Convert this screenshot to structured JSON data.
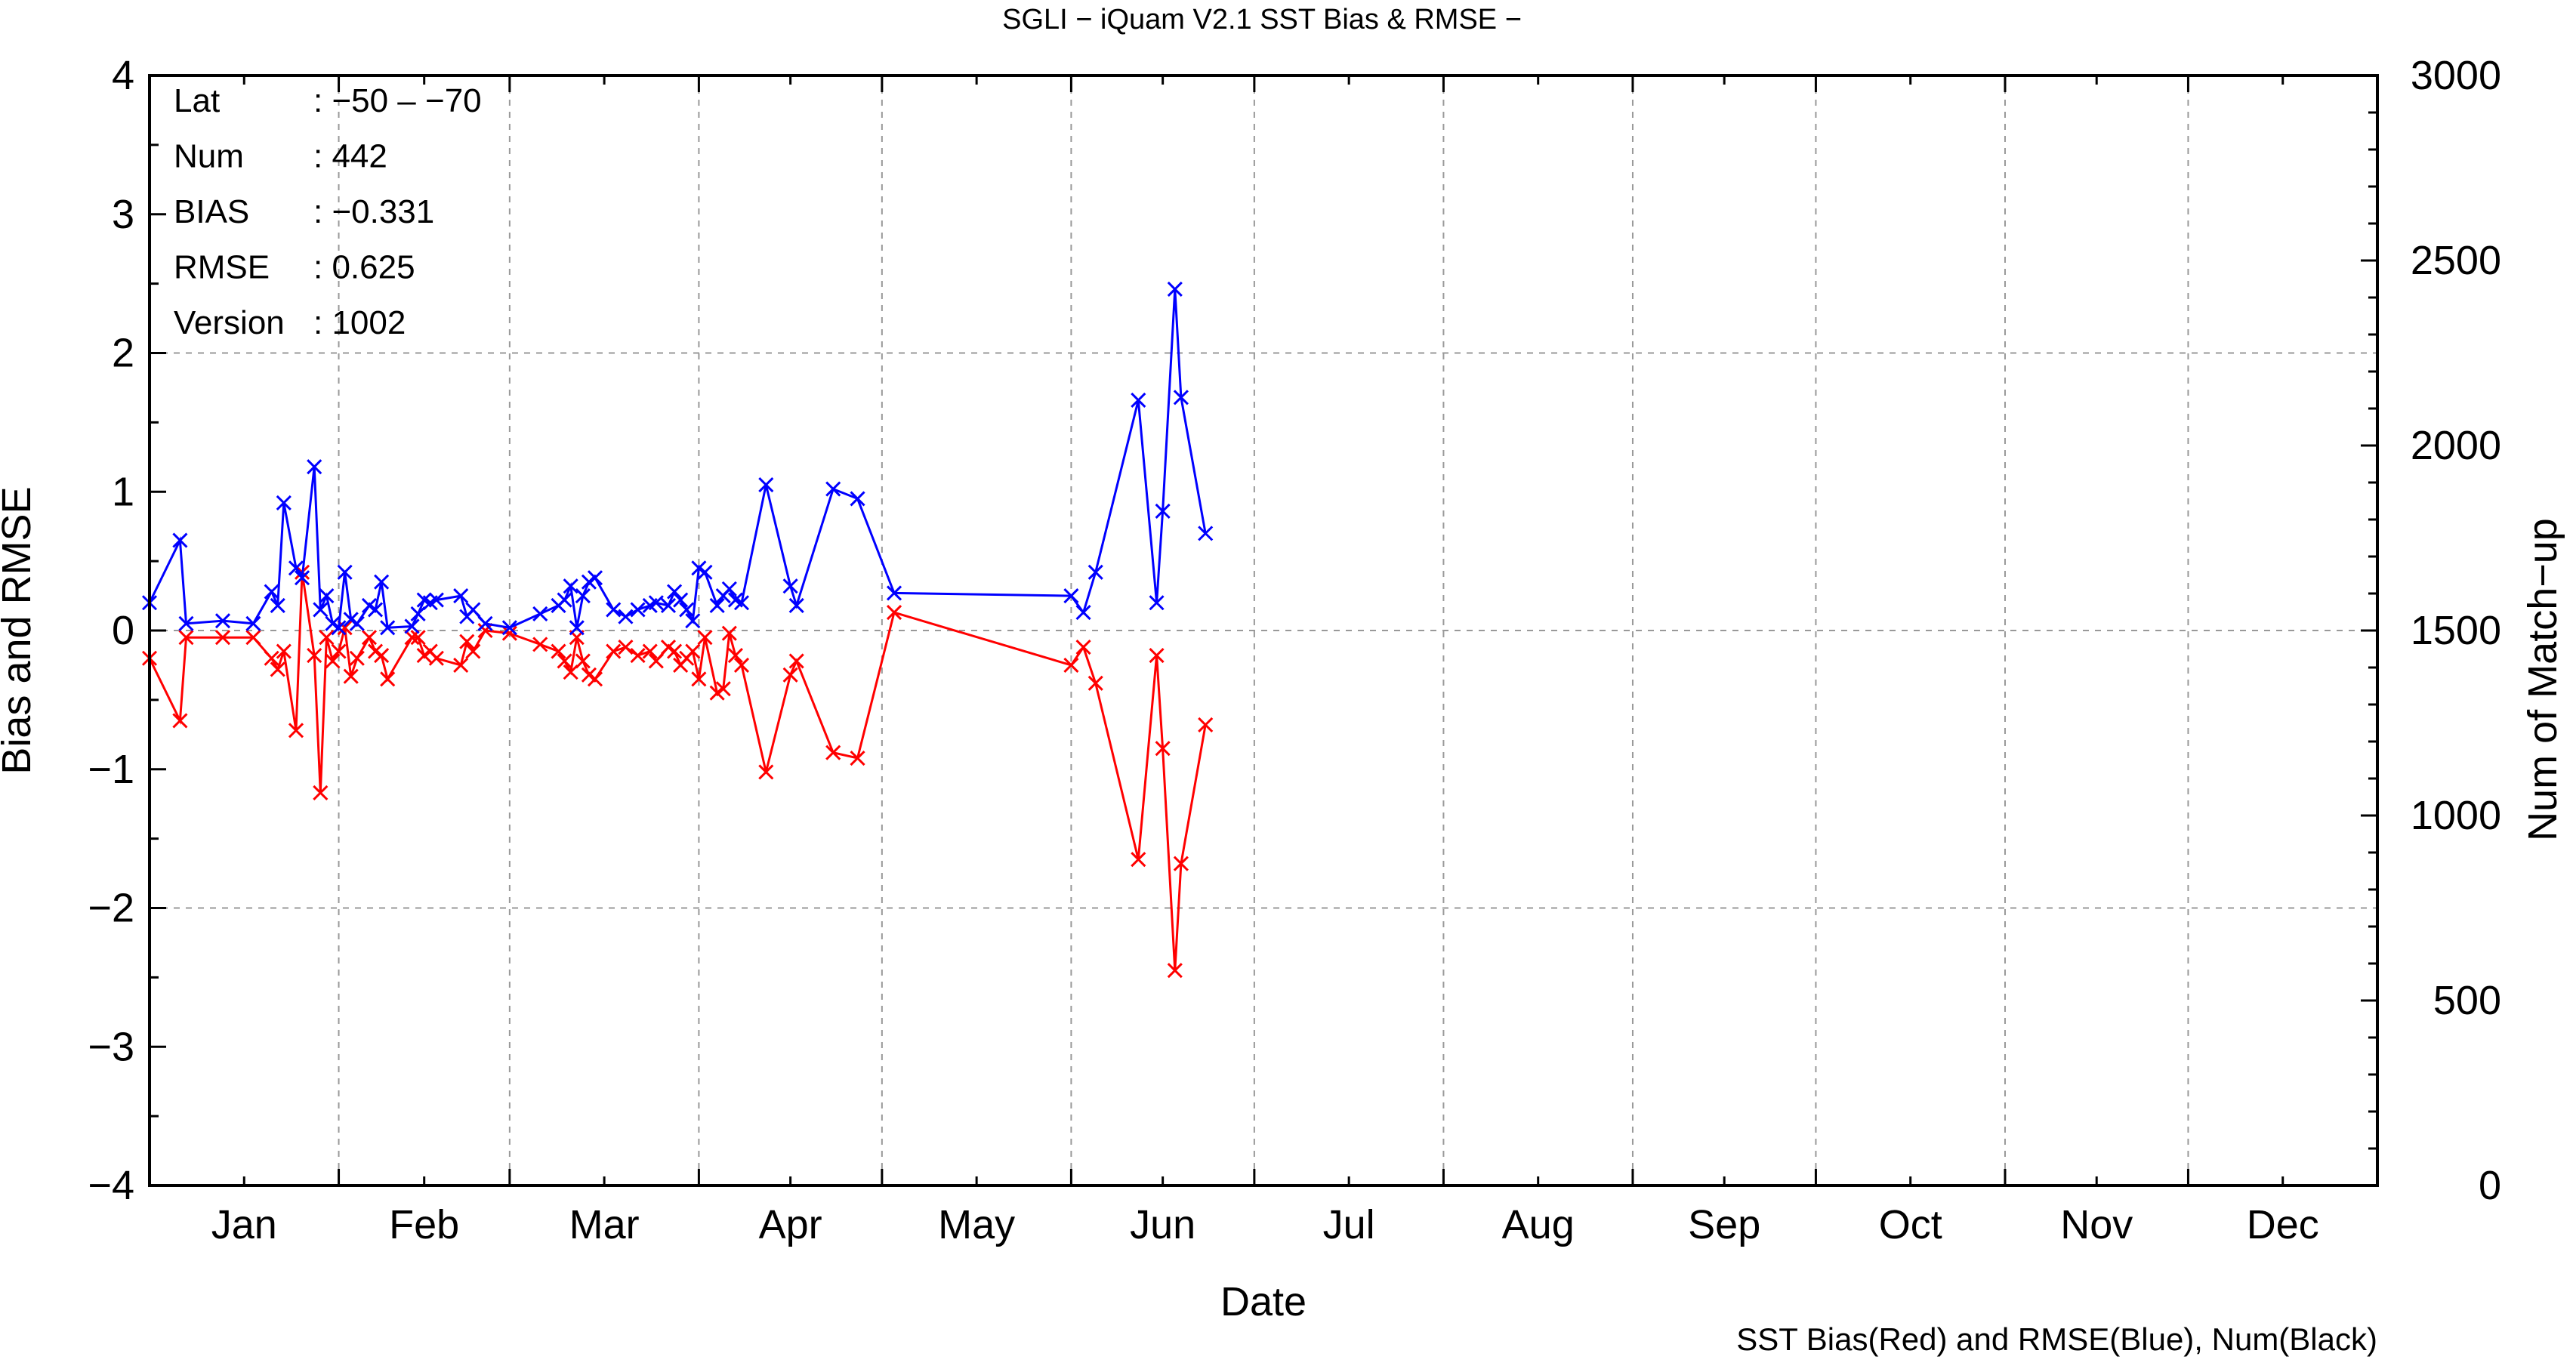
{
  "chart_data": {
    "type": "line",
    "title": "SGLI − iQuam V2.1 SST Bias & RMSE  −",
    "xlabel": "Date",
    "ylabel": "Bias and RMSE",
    "y2label": "Num of Match−up",
    "ylim": [
      -4,
      4
    ],
    "y2lim": [
      0,
      3000
    ],
    "xlim": [
      "2019-01-01",
      "2019-12-31"
    ],
    "x_month_labels": [
      "Jan",
      "Feb",
      "Mar",
      "Apr",
      "May",
      "Jun",
      "Jul",
      "Aug",
      "Sep",
      "Oct",
      "Nov",
      "Dec"
    ],
    "y_ticks": [
      "−4",
      "−3",
      "−2",
      "−1",
      "0",
      "1",
      "2",
      "3",
      "4"
    ],
    "y2_ticks": [
      "0",
      "500",
      "1000",
      "1500",
      "2000",
      "2500",
      "3000"
    ],
    "grid": true,
    "note": "SST Bias(Red) and RMSE(Blue), Num(Black)",
    "info": [
      {
        "label": "Lat",
        "value": ": −50 – −70"
      },
      {
        "label": "Num",
        "value": ": 442"
      },
      {
        "label": "BIAS",
        "value": ": −0.331"
      },
      {
        "label": "RMSE",
        "value": ": 0.625"
      },
      {
        "label": "Version",
        "value": ": 1002"
      }
    ],
    "colors": {
      "bias": "#ff0000",
      "rmse": "#0000ff",
      "grid": "#999999",
      "axis": "#000000"
    },
    "series": [
      {
        "key": "bias",
        "x": [
          "2019-01-01",
          "2019-01-06",
          "2019-01-07",
          "2019-01-13",
          "2019-01-18",
          "2019-01-21",
          "2019-01-22",
          "2019-01-23",
          "2019-01-25",
          "2019-01-26",
          "2019-01-28",
          "2019-01-29",
          "2019-01-30",
          "2019-01-31",
          "2019-02-01",
          "2019-02-02",
          "2019-02-03",
          "2019-02-04",
          "2019-02-06",
          "2019-02-07",
          "2019-02-08",
          "2019-02-09",
          "2019-02-13",
          "2019-02-14",
          "2019-02-15",
          "2019-02-16",
          "2019-02-17",
          "2019-02-21",
          "2019-02-22",
          "2019-02-23",
          "2019-02-25",
          "2019-03-01",
          "2019-03-06",
          "2019-03-09",
          "2019-03-10",
          "2019-03-11",
          "2019-03-12",
          "2019-03-13",
          "2019-03-14",
          "2019-03-15",
          "2019-03-18",
          "2019-03-20",
          "2019-03-22",
          "2019-03-24",
          "2019-03-25",
          "2019-03-27",
          "2019-03-28",
          "2019-03-29",
          "2019-03-30",
          "2019-03-31",
          "2019-04-01",
          "2019-04-02",
          "2019-04-04",
          "2019-04-05",
          "2019-04-06",
          "2019-04-07",
          "2019-04-08",
          "2019-04-12",
          "2019-04-16",
          "2019-04-17",
          "2019-04-23",
          "2019-04-27",
          "2019-05-03",
          "2019-06-01",
          "2019-06-03",
          "2019-06-05",
          "2019-06-12",
          "2019-06-15",
          "2019-06-16",
          "2019-06-18",
          "2019-06-19",
          "2019-06-23"
        ],
        "values": [
          -0.2,
          -0.65,
          -0.05,
          -0.05,
          -0.05,
          -0.2,
          -0.28,
          -0.15,
          -0.72,
          0.42,
          -0.18,
          -1.17,
          -0.05,
          -0.22,
          -0.15,
          0.02,
          -0.33,
          -0.2,
          -0.05,
          -0.15,
          -0.18,
          -0.35,
          -0.05,
          -0.05,
          -0.18,
          -0.15,
          -0.2,
          -0.25,
          -0.08,
          -0.15,
          0.0,
          -0.02,
          -0.1,
          -0.15,
          -0.22,
          -0.3,
          -0.05,
          -0.22,
          -0.32,
          -0.35,
          -0.15,
          -0.12,
          -0.18,
          -0.15,
          -0.22,
          -0.12,
          -0.15,
          -0.25,
          -0.2,
          -0.15,
          -0.35,
          -0.05,
          -0.45,
          -0.42,
          -0.02,
          -0.18,
          -0.25,
          -1.02,
          -0.32,
          -0.22,
          -0.88,
          -0.92,
          0.13,
          -0.25,
          -0.12,
          -0.38,
          -1.65,
          -0.18,
          -0.85,
          -2.45,
          -1.68,
          -0.68
        ]
      },
      {
        "key": "rmse",
        "x": [
          "2019-01-01",
          "2019-01-06",
          "2019-01-07",
          "2019-01-13",
          "2019-01-18",
          "2019-01-21",
          "2019-01-22",
          "2019-01-23",
          "2019-01-25",
          "2019-01-26",
          "2019-01-28",
          "2019-01-29",
          "2019-01-30",
          "2019-01-31",
          "2019-02-01",
          "2019-02-02",
          "2019-02-03",
          "2019-02-04",
          "2019-02-06",
          "2019-02-07",
          "2019-02-08",
          "2019-02-09",
          "2019-02-13",
          "2019-02-14",
          "2019-02-15",
          "2019-02-16",
          "2019-02-17",
          "2019-02-21",
          "2019-02-22",
          "2019-02-23",
          "2019-02-25",
          "2019-03-01",
          "2019-03-06",
          "2019-03-09",
          "2019-03-10",
          "2019-03-11",
          "2019-03-12",
          "2019-03-13",
          "2019-03-14",
          "2019-03-15",
          "2019-03-18",
          "2019-03-20",
          "2019-03-22",
          "2019-03-24",
          "2019-03-25",
          "2019-03-27",
          "2019-03-28",
          "2019-03-29",
          "2019-03-30",
          "2019-03-31",
          "2019-04-01",
          "2019-04-02",
          "2019-04-04",
          "2019-04-05",
          "2019-04-06",
          "2019-04-07",
          "2019-04-08",
          "2019-04-12",
          "2019-04-16",
          "2019-04-17",
          "2019-04-23",
          "2019-04-27",
          "2019-05-03",
          "2019-06-01",
          "2019-06-03",
          "2019-06-05",
          "2019-06-12",
          "2019-06-15",
          "2019-06-16",
          "2019-06-18",
          "2019-06-19",
          "2019-06-23"
        ],
        "values": [
          0.2,
          0.65,
          0.05,
          0.07,
          0.05,
          0.28,
          0.18,
          0.92,
          0.45,
          0.38,
          1.18,
          0.15,
          0.25,
          0.05,
          0.02,
          0.42,
          0.08,
          0.05,
          0.18,
          0.15,
          0.35,
          0.02,
          0.03,
          0.12,
          0.22,
          0.2,
          0.22,
          0.25,
          0.1,
          0.15,
          0.05,
          0.02,
          0.12,
          0.18,
          0.22,
          0.32,
          0.02,
          0.25,
          0.35,
          0.38,
          0.15,
          0.1,
          0.15,
          0.18,
          0.2,
          0.18,
          0.28,
          0.22,
          0.15,
          0.07,
          0.45,
          0.42,
          0.18,
          0.25,
          0.3,
          0.22,
          0.2,
          1.05,
          0.32,
          0.18,
          1.02,
          0.95,
          0.27,
          0.25,
          0.13,
          0.42,
          1.66,
          0.2,
          0.86,
          2.46,
          1.68,
          0.7
        ]
      }
    ]
  }
}
